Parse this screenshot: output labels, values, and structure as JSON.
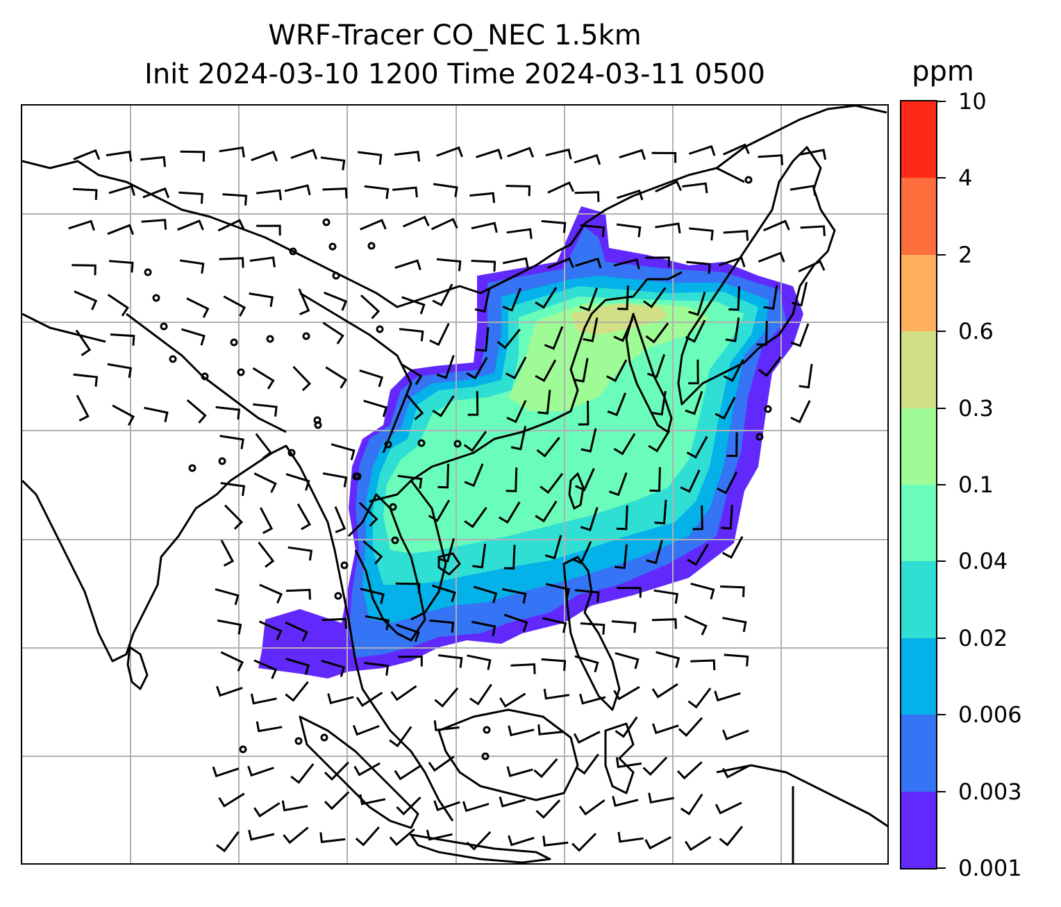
{
  "title": {
    "line1": "WRF-Tracer CO_NEC 1.5km",
    "line2": "Init 2024-03-10 1200 Time 2024-03-11 0500"
  },
  "colorbar": {
    "unit": "ppm",
    "levels": [
      "0.001",
      "0.003",
      "0.006",
      "0.02",
      "0.04",
      "0.1",
      "0.3",
      "0.6",
      "2",
      "4",
      "10"
    ],
    "colors": [
      "#6229fc",
      "#3574f4",
      "#04b1e9",
      "#2fdfd4",
      "#6afcbb",
      "#9ffb95",
      "#d2df84",
      "#feb05e",
      "#fe6d3c",
      "#fc2a16"
    ]
  },
  "chart_data": {
    "type": "filled-contour map with wind barbs",
    "variable": "CO_NEC tracer",
    "level": "1.5km",
    "units": "ppm",
    "contour_levels": [
      0.001,
      0.003,
      0.006,
      0.02,
      0.04,
      0.1,
      0.3,
      0.6,
      2,
      4,
      10
    ],
    "gridlines": true,
    "overlays": [
      "coastlines",
      "country borders",
      "wind barbs"
    ]
  },
  "style": {
    "coast_color": "#000000",
    "grid_color": "#b0b0b0",
    "barb_color": "#000000"
  }
}
